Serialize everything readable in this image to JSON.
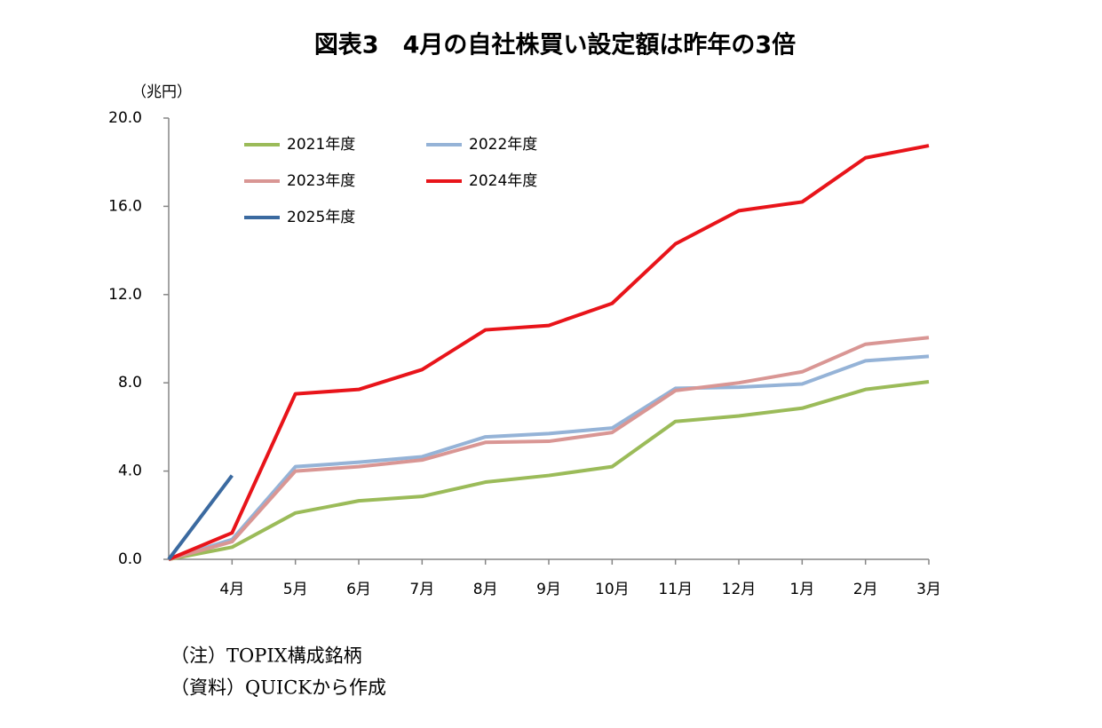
{
  "chart_data": {
    "type": "line",
    "title": "図表3　4月の自社株買い設定額は昨年の3倍",
    "y_axis_label": "（兆円）",
    "notes": [
      "（注）TOPIX構成銘柄",
      "（資料）QUICKから作成"
    ],
    "categories": [
      null,
      "4月",
      "5月",
      "6月",
      "7月",
      "8月",
      "9月",
      "10月",
      "11月",
      "12月",
      "1月",
      "2月",
      "3月"
    ],
    "series": [
      {
        "name": "2021年度",
        "color": "#9bbb59",
        "values": [
          0,
          0.55,
          2.1,
          2.65,
          2.85,
          3.5,
          3.8,
          4.2,
          6.25,
          6.5,
          6.85,
          7.7,
          8.05
        ]
      },
      {
        "name": "2022年度",
        "color": "#95b3d7",
        "values": [
          0,
          0.9,
          4.2,
          4.4,
          4.65,
          5.55,
          5.7,
          5.95,
          7.75,
          7.8,
          7.95,
          9.0,
          9.2
        ]
      },
      {
        "name": "2023年度",
        "color": "#d99694",
        "values": [
          0,
          0.8,
          4.0,
          4.2,
          4.5,
          5.3,
          5.35,
          5.75,
          7.65,
          8.0,
          8.5,
          9.75,
          10.05
        ]
      },
      {
        "name": "2024年度",
        "color": "#e8141a",
        "values": [
          0,
          1.2,
          7.5,
          7.7,
          8.6,
          10.4,
          10.6,
          11.6,
          14.3,
          15.8,
          16.2,
          18.2,
          18.75
        ]
      },
      {
        "name": "2025年度",
        "color": "#3b6aa0",
        "values": [
          0,
          3.8,
          null,
          null,
          null,
          null,
          null,
          null,
          null,
          null,
          null,
          null,
          null
        ]
      }
    ],
    "ylim": [
      0,
      20
    ],
    "yticks": [
      {
        "value": 0,
        "label": "0.0"
      },
      {
        "value": 4,
        "label": "4.0"
      },
      {
        "value": 8,
        "label": "8.0"
      },
      {
        "value": 12,
        "label": "12.0"
      },
      {
        "value": 16,
        "label": "16.0"
      },
      {
        "value": 20,
        "label": "20.0"
      }
    ],
    "grid": false
  }
}
